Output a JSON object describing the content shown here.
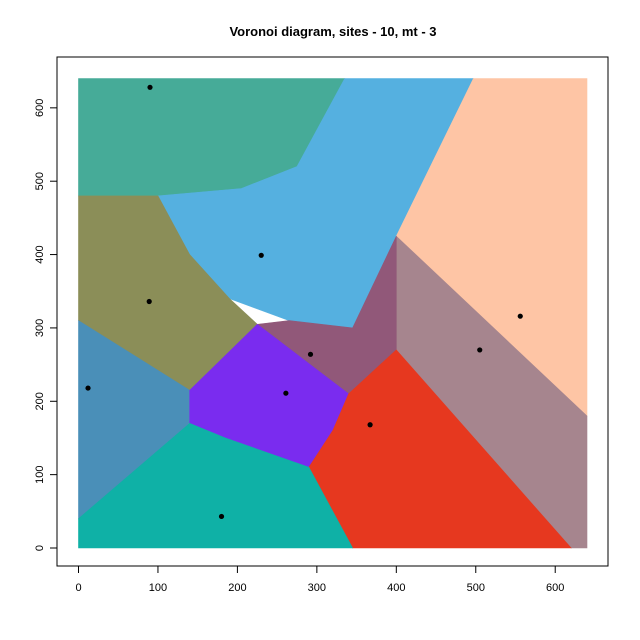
{
  "chart_data": {
    "type": "voronoi",
    "title": "Voronoi diagram, sites - 10, mt - 3",
    "xlabel": "",
    "ylabel": "",
    "xlim": [
      0,
      640
    ],
    "ylim": [
      0,
      640
    ],
    "xticks": [
      0,
      100,
      200,
      300,
      400,
      500,
      600
    ],
    "yticks": [
      0,
      100,
      200,
      300,
      400,
      500,
      600
    ],
    "sites": [
      {
        "x": 90,
        "y": 628
      },
      {
        "x": 230,
        "y": 399
      },
      {
        "x": 556,
        "y": 316
      },
      {
        "x": 89,
        "y": 336
      },
      {
        "x": 505,
        "y": 270
      },
      {
        "x": 292,
        "y": 264
      },
      {
        "x": 12,
        "y": 218
      },
      {
        "x": 261,
        "y": 211
      },
      {
        "x": 367,
        "y": 168
      },
      {
        "x": 180,
        "y": 43
      }
    ],
    "regions": [
      {
        "color": "#46ab98",
        "vertices": [
          [
            0,
            640
          ],
          [
            335,
            640
          ],
          [
            275,
            520
          ],
          [
            205,
            490
          ],
          [
            100,
            480
          ],
          [
            0,
            480
          ]
        ]
      },
      {
        "color": "#55b0e0",
        "vertices": [
          [
            335,
            640
          ],
          [
            497,
            640
          ],
          [
            400,
            425
          ],
          [
            345,
            300
          ],
          [
            265,
            310
          ],
          [
            190,
            340
          ],
          [
            140,
            400
          ],
          [
            100,
            480
          ],
          [
            205,
            490
          ],
          [
            275,
            520
          ]
        ]
      },
      {
        "color": "#fec5a5",
        "vertices": [
          [
            497,
            640
          ],
          [
            640,
            640
          ],
          [
            640,
            180
          ],
          [
            400,
            425
          ]
        ]
      },
      {
        "color": "#8b8e58",
        "vertices": [
          [
            0,
            480
          ],
          [
            100,
            480
          ],
          [
            140,
            400
          ],
          [
            190,
            340
          ],
          [
            225,
            305
          ],
          [
            140,
            215
          ],
          [
            0,
            310
          ]
        ]
      },
      {
        "color": "#a6858e",
        "vertices": [
          [
            400,
            425
          ],
          [
            640,
            180
          ],
          [
            640,
            0
          ],
          [
            620,
            0
          ],
          [
            400,
            270
          ]
        ]
      },
      {
        "color": "#915879",
        "vertices": [
          [
            345,
            300
          ],
          [
            400,
            425
          ],
          [
            400,
            270
          ],
          [
            340,
            210
          ],
          [
            225,
            305
          ],
          [
            265,
            310
          ]
        ]
      },
      {
        "color": "#4a8fb8",
        "vertices": [
          [
            0,
            310
          ],
          [
            140,
            215
          ],
          [
            140,
            170
          ],
          [
            0,
            40
          ]
        ]
      },
      {
        "color": "#7a2cef",
        "vertices": [
          [
            140,
            215
          ],
          [
            225,
            305
          ],
          [
            340,
            210
          ],
          [
            320,
            160
          ],
          [
            290,
            110
          ],
          [
            185,
            150
          ],
          [
            140,
            170
          ]
        ]
      },
      {
        "color": "#e6381f",
        "vertices": [
          [
            340,
            210
          ],
          [
            400,
            270
          ],
          [
            620,
            0
          ],
          [
            345,
            0
          ],
          [
            290,
            110
          ],
          [
            320,
            160
          ]
        ]
      },
      {
        "color": "#0fb1a6",
        "vertices": [
          [
            0,
            40
          ],
          [
            140,
            170
          ],
          [
            185,
            150
          ],
          [
            290,
            110
          ],
          [
            345,
            0
          ],
          [
            0,
            0
          ]
        ]
      }
    ]
  }
}
